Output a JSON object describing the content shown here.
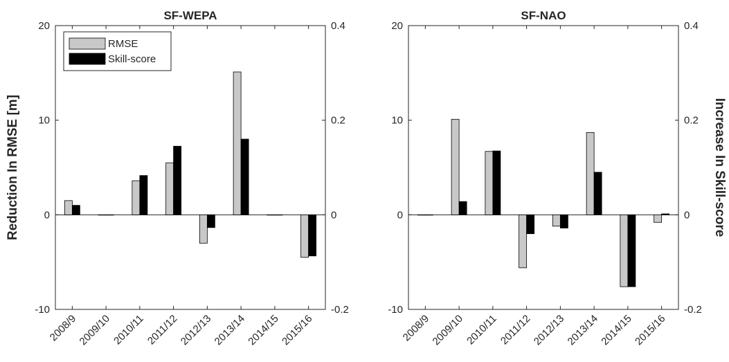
{
  "chart_data": [
    {
      "type": "bar",
      "title": "SF-WEPA",
      "categories": [
        "2008/9",
        "2009/10",
        "2010/11",
        "2011/12",
        "2012/13",
        "2013/14",
        "2014/15",
        "2015/16"
      ],
      "ylabel": "Reduction In RMSE [m]",
      "ylim": [
        -10,
        20
      ],
      "yticks": [
        "-10",
        "0",
        "10",
        "20"
      ],
      "y2label": "",
      "y2lim": [
        -0.2,
        0.4
      ],
      "y2ticks": [
        "-0.2",
        "0",
        "0.2",
        "0.4"
      ],
      "legend_placement": "top-left",
      "grid": false,
      "series": [
        {
          "name": "RMSE",
          "axis": "left",
          "color": "#c8c8c8",
          "values": [
            1.5,
            0,
            3.6,
            5.5,
            -3.0,
            15.1,
            0,
            -4.5
          ]
        },
        {
          "name": "Skill-score",
          "axis": "right",
          "color": "#000000",
          "values": [
            0.02,
            0,
            0.083,
            0.145,
            -0.027,
            0.16,
            0,
            -0.087
          ]
        }
      ]
    },
    {
      "type": "bar",
      "title": "SF-NAO",
      "categories": [
        "2008/9",
        "2009/10",
        "2010/11",
        "2011/12",
        "2012/13",
        "2013/14",
        "2014/15",
        "2015/16"
      ],
      "ylabel": "",
      "ylim": [
        -10,
        20
      ],
      "yticks": [
        "-10",
        "0",
        "10",
        "20"
      ],
      "y2label": "Increase In Skill-score",
      "y2lim": [
        -0.2,
        0.4
      ],
      "y2ticks": [
        "-0.2",
        "0",
        "0.2",
        "0.4"
      ],
      "legend_placement": "",
      "grid": false,
      "series": [
        {
          "name": "RMSE",
          "axis": "left",
          "color": "#c8c8c8",
          "values": [
            0,
            10.1,
            6.7,
            -5.6,
            -1.2,
            8.7,
            -7.6,
            -0.8
          ]
        },
        {
          "name": "Skill-score",
          "axis": "right",
          "color": "#000000",
          "values": [
            0,
            0.028,
            0.135,
            -0.04,
            -0.028,
            0.09,
            -0.152,
            0.002
          ]
        }
      ]
    }
  ]
}
